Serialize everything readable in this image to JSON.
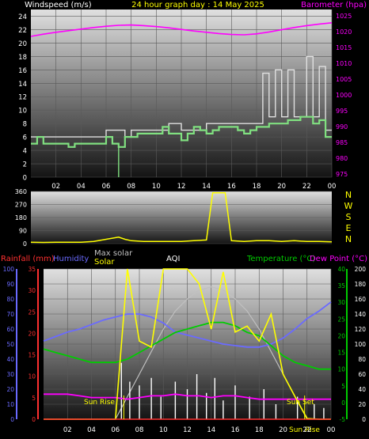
{
  "header": {
    "title": "24 hour graph day : 14 May 2025",
    "wind_label": "Windspeed (m/s)",
    "baro_label": "Barometer (hpa)"
  },
  "colors": {
    "background": "#000000",
    "title": "#ffff00",
    "wind_line": "#80e080",
    "gust_line": "#e0e0e0",
    "barometer": "#ff00ff",
    "direction": "#ffff00",
    "rainfall": "#ff3030",
    "humidity": "#6a6aff",
    "max_solar": "#c0c0c0",
    "solar": "#ffff00",
    "aqi": "#ffffff",
    "temperature": "#00cc00",
    "dew_point": "#ff00ff",
    "sun_label": "#ffff00"
  },
  "chart_data": [
    {
      "id": "wind_baro",
      "type": "line",
      "x_ticks": [
        "02",
        "04",
        "06",
        "08",
        "10",
        "12",
        "14",
        "16",
        "18",
        "20",
        "22",
        "00"
      ],
      "y_left": {
        "label": "Windspeed (m/s)",
        "ticks": [
          0,
          2,
          4,
          6,
          8,
          10,
          12,
          14,
          16,
          18,
          20,
          22,
          24
        ],
        "lim": [
          0,
          25
        ]
      },
      "y_right": {
        "label": "Barometer (hpa)",
        "ticks": [
          975,
          980,
          985,
          990,
          995,
          1000,
          1005,
          1010,
          1015,
          1020,
          1025
        ],
        "lim": [
          974,
          1027
        ]
      },
      "series": [
        {
          "axis": "left",
          "x": [
            0,
            0.5,
            1,
            1.5,
            2,
            2.5,
            3,
            3.5,
            4,
            4.5,
            5,
            5.5,
            6,
            6.5,
            7,
            7.5,
            8,
            8.5,
            9,
            9.5,
            10,
            10.5,
            11,
            11.5,
            12,
            12.5,
            13,
            13.5,
            14,
            14.5,
            15,
            15.5,
            16,
            16.5,
            17,
            17.5,
            18,
            18.5,
            19,
            19.5,
            20,
            20.5,
            21,
            21.5,
            22,
            22.5,
            23,
            23.5,
            24
          ],
          "values": [
            5,
            6,
            5,
            5,
            5,
            5,
            4.5,
            5,
            5,
            5,
            5,
            5,
            6,
            5,
            4.5,
            6,
            6,
            6.5,
            6.5,
            6.5,
            6.5,
            7.5,
            6.5,
            6.5,
            5.5,
            6.5,
            7.5,
            7,
            6.5,
            7,
            7.5,
            7.5,
            7.5,
            7,
            6.5,
            7,
            7.5,
            7.5,
            8,
            8,
            8,
            8.5,
            8.5,
            9,
            9,
            8,
            8.5,
            6,
            6
          ]
        },
        {
          "axis": "left",
          "x": [
            0,
            1,
            2,
            3,
            4,
            5,
            6,
            6.5,
            7,
            7.5,
            8,
            9,
            10,
            11,
            12,
            13,
            14,
            15,
            16,
            17,
            18,
            18.5,
            19,
            19.5,
            20,
            20.5,
            21,
            21.5,
            22,
            22.5,
            23,
            23.5,
            24
          ],
          "values": [
            6,
            6,
            6,
            6,
            6,
            6,
            7,
            7,
            7,
            6,
            7,
            7,
            7,
            8,
            7,
            7,
            8,
            8,
            8,
            8,
            8,
            15.5,
            9,
            16,
            9,
            16,
            9,
            9,
            18,
            9,
            16.5,
            7,
            7
          ]
        },
        {
          "axis": "right",
          "x": [
            0,
            1,
            2,
            3,
            4,
            5,
            6,
            7,
            8,
            9,
            10,
            11,
            12,
            13,
            14,
            15,
            16,
            17,
            18,
            19,
            20,
            21,
            22,
            23,
            24
          ],
          "values": [
            1018.5,
            1019.2,
            1019.8,
            1020.3,
            1020.8,
            1021.3,
            1021.7,
            1022.0,
            1022.1,
            1021.9,
            1021.6,
            1021.2,
            1020.7,
            1020.2,
            1019.8,
            1019.4,
            1019.1,
            1019.0,
            1019.3,
            1019.9,
            1020.6,
            1021.3,
            1021.9,
            1022.4,
            1022.8
          ]
        }
      ]
    },
    {
      "id": "direction",
      "type": "line",
      "y_ticks": [
        0,
        90,
        180,
        270,
        360
      ],
      "y_lim": [
        0,
        360
      ],
      "compass_labels": [
        "N",
        "W",
        "S",
        "E",
        "N"
      ],
      "x": [
        0,
        1,
        2,
        3,
        4,
        5,
        6,
        7,
        7.5,
        8,
        9,
        10,
        11,
        12,
        13,
        14,
        14.5,
        15,
        15.5,
        16,
        17,
        18,
        19,
        20,
        21,
        22,
        23,
        24
      ],
      "values": [
        10,
        8,
        10,
        10,
        10,
        15,
        30,
        45,
        30,
        20,
        15,
        15,
        15,
        15,
        20,
        25,
        350,
        350,
        350,
        20,
        15,
        20,
        20,
        15,
        20,
        15,
        15,
        12
      ]
    },
    {
      "id": "weather",
      "type": "line",
      "x_ticks": [
        "02",
        "04",
        "06",
        "08",
        "10",
        "12",
        "14",
        "16",
        "18",
        "20",
        "22",
        "00"
      ],
      "legend": {
        "rainfall": "Rainfall (mm)",
        "humidity": "Humidity",
        "max_solar": "Max solar",
        "solar": "Solar",
        "aqi": "AQI",
        "temperature": "Temperature (°C)",
        "dew_point": "Dew Point (°C)"
      },
      "axis_ticks": {
        "humidity": [
          0,
          10,
          20,
          30,
          40,
          50,
          60,
          70,
          80,
          90,
          100
        ],
        "rain": [
          0,
          5,
          10,
          15,
          20,
          25,
          30,
          35
        ],
        "temperature": [
          -5,
          0,
          5,
          10,
          15,
          20,
          25,
          30,
          35,
          40
        ],
        "aqi": [
          0,
          20,
          40,
          60,
          80,
          100,
          120,
          140,
          160,
          180,
          200
        ]
      },
      "sun_events": {
        "rise_label": "Sun Rise",
        "set_label": "Sun Set",
        "rise_hour": 6.7,
        "set_hour": 21.8
      },
      "x_hours": [
        0,
        1,
        2,
        3,
        4,
        5,
        6,
        7,
        8,
        9,
        10,
        11,
        12,
        13,
        14,
        15,
        16,
        17,
        18,
        19,
        20,
        21,
        22,
        23,
        24
      ],
      "series": [
        {
          "key": "humidity",
          "values": [
            52,
            55,
            58,
            60,
            63,
            66,
            68,
            70,
            70,
            68,
            64,
            58,
            56,
            54,
            52,
            50,
            49,
            48,
            48,
            50,
            54,
            60,
            67,
            72,
            78
          ]
        },
        {
          "key": "temperature",
          "values": [
            16,
            15,
            14,
            13,
            12,
            12,
            12,
            13,
            15,
            17,
            19,
            21,
            22,
            23,
            24,
            24,
            23,
            21,
            20,
            17,
            14,
            12,
            11,
            10,
            10
          ]
        },
        {
          "key": "dew_point",
          "values": [
            2.5,
            2.5,
            2.5,
            2,
            1.5,
            1.5,
            1.5,
            1,
            1.5,
            2,
            2,
            2.5,
            2,
            2,
            1.5,
            2,
            2,
            1.5,
            1,
            1,
            1,
            1,
            1,
            1,
            1
          ]
        },
        {
          "key": "max_solar",
          "values": [
            0,
            0,
            0,
            0,
            0,
            0,
            0,
            150,
            300,
            450,
            600,
            720,
            800,
            860,
            880,
            860,
            800,
            720,
            600,
            450,
            300,
            150,
            0,
            0,
            0
          ]
        },
        {
          "key": "solar",
          "values": [
            0,
            0,
            0,
            0,
            0,
            0,
            0,
            1000,
            520,
            480,
            1000,
            1000,
            1000,
            900,
            600,
            980,
            580,
            620,
            520,
            700,
            300,
            150,
            5,
            0,
            0
          ]
        },
        {
          "key": "rainfall",
          "values": [
            0,
            0,
            0,
            0,
            0,
            0,
            0,
            0,
            0,
            0,
            0,
            0,
            0,
            0,
            0,
            0,
            0,
            0,
            0,
            0,
            0,
            0,
            0,
            0,
            0
          ]
        }
      ],
      "aqi_spikes": [
        {
          "x": 6.5,
          "y": 75
        },
        {
          "x": 7.2,
          "y": 50
        },
        {
          "x": 8.0,
          "y": 45
        },
        {
          "x": 9.0,
          "y": 55
        },
        {
          "x": 9.8,
          "y": 30
        },
        {
          "x": 11.0,
          "y": 50
        },
        {
          "x": 12.0,
          "y": 40
        },
        {
          "x": 12.8,
          "y": 60
        },
        {
          "x": 13.6,
          "y": 35
        },
        {
          "x": 14.3,
          "y": 55
        },
        {
          "x": 15.0,
          "y": 25
        },
        {
          "x": 16.0,
          "y": 45
        },
        {
          "x": 17.2,
          "y": 30
        },
        {
          "x": 18.4,
          "y": 40
        },
        {
          "x": 19.4,
          "y": 20
        },
        {
          "x": 21.2,
          "y": 30
        },
        {
          "x": 22.6,
          "y": 20
        },
        {
          "x": 23.4,
          "y": 15
        }
      ]
    }
  ]
}
